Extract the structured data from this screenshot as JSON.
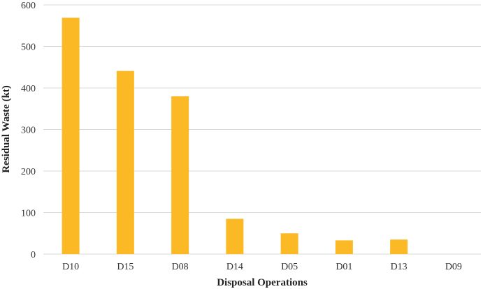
{
  "chart_data": {
    "type": "bar",
    "title": "",
    "xlabel": "Disposal Operations",
    "ylabel": "Residual Waste (kt)",
    "categories": [
      "D10",
      "D15",
      "D08",
      "D14",
      "D05",
      "D01",
      "D13",
      "D09"
    ],
    "values": [
      569,
      441,
      380,
      85,
      50,
      33,
      35,
      0
    ],
    "ylim": [
      0,
      600
    ],
    "yticks": [
      "0",
      "100",
      "200",
      "300",
      "400",
      "500",
      "600"
    ],
    "grid": true,
    "legend": "none",
    "bar_color": "#FBBA25",
    "grid_color": "#D9D9D9"
  }
}
